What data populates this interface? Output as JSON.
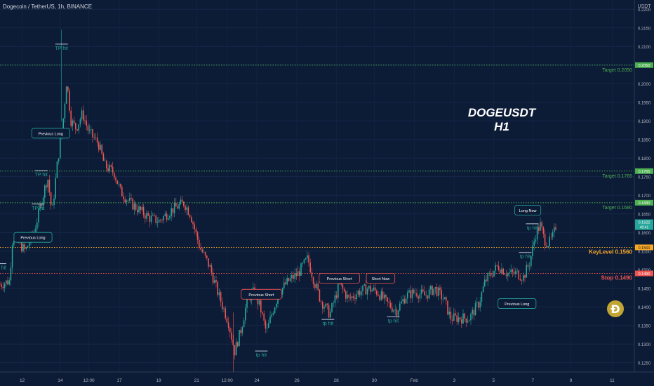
{
  "header": {
    "symbol_title": "Dogecoin / TetherUS, 1h, BINANCE",
    "currency": "USDT"
  },
  "overlay_title": [
    "DOGEUSDT",
    "H1"
  ],
  "colors": {
    "background": "#0c1b36",
    "bull": "#26a69a",
    "bear": "#ef5350",
    "target_line": "#4caf50",
    "key_line": "#f9a825",
    "stop_line": "#ef5350",
    "axis_text": "#b2b5be"
  },
  "chart_data": {
    "type": "candlestick",
    "interval": "1h",
    "ylim": [
      0.1225,
      0.2225
    ],
    "yticks": [
      0.125,
      0.13,
      0.135,
      0.14,
      0.145,
      0.15,
      0.155,
      0.16,
      0.165,
      0.17,
      0.175,
      0.18,
      0.185,
      0.19,
      0.195,
      0.2,
      0.205,
      0.21,
      0.215,
      0.22
    ],
    "x_tick_labels": [
      "12",
      "14",
      "12:00",
      "17",
      "19",
      "21",
      "12:00",
      "24",
      "26",
      "28",
      "30",
      "Feb",
      "3",
      "5",
      "7",
      "9",
      "11"
    ],
    "x_tick_positions": [
      0.035,
      0.095,
      0.14,
      0.188,
      0.25,
      0.31,
      0.358,
      0.405,
      0.468,
      0.53,
      0.59,
      0.653,
      0.716,
      0.778,
      0.84,
      0.9,
      0.965
    ],
    "horizontal_levels": [
      {
        "label": "Target 0.2050",
        "axis_badge": "0.2050",
        "value": 0.205,
        "kind": "target"
      },
      {
        "label": "Target 0.1765",
        "axis_badge": "0.1765",
        "value": 0.1765,
        "kind": "target"
      },
      {
        "label": "Target 0.1680",
        "axis_badge": "0.1680",
        "value": 0.168,
        "kind": "target"
      },
      {
        "label": "KeyLevel 0.1560",
        "axis_badge": "0.1560",
        "value": 0.156,
        "kind": "key"
      },
      {
        "label": "Stop 0.1490",
        "axis_badge": "0.1490",
        "value": 0.149,
        "kind": "stop"
      }
    ],
    "last_price": {
      "value": 0.1622,
      "text": "0.1622",
      "countdown": "40:41"
    },
    "trajectory": [
      [
        0.0,
        0.146
      ],
      [
        0.015,
        0.147
      ],
      [
        0.02,
        0.159
      ],
      [
        0.04,
        0.155
      ],
      [
        0.055,
        0.161
      ],
      [
        0.065,
        0.168
      ],
      [
        0.075,
        0.175
      ],
      [
        0.082,
        0.165
      ],
      [
        0.09,
        0.178
      ],
      [
        0.1,
        0.191
      ],
      [
        0.105,
        0.201
      ],
      [
        0.112,
        0.19
      ],
      [
        0.12,
        0.188
      ],
      [
        0.13,
        0.192
      ],
      [
        0.14,
        0.187
      ],
      [
        0.155,
        0.184
      ],
      [
        0.165,
        0.178
      ],
      [
        0.18,
        0.176
      ],
      [
        0.19,
        0.171
      ],
      [
        0.205,
        0.168
      ],
      [
        0.22,
        0.166
      ],
      [
        0.235,
        0.164
      ],
      [
        0.25,
        0.163
      ],
      [
        0.27,
        0.166
      ],
      [
        0.29,
        0.168
      ],
      [
        0.3,
        0.165
      ],
      [
        0.315,
        0.156
      ],
      [
        0.33,
        0.151
      ],
      [
        0.345,
        0.143
      ],
      [
        0.36,
        0.136
      ],
      [
        0.37,
        0.128
      ],
      [
        0.38,
        0.134
      ],
      [
        0.39,
        0.142
      ],
      [
        0.4,
        0.144
      ],
      [
        0.41,
        0.14
      ],
      [
        0.42,
        0.133
      ],
      [
        0.43,
        0.139
      ],
      [
        0.44,
        0.144
      ],
      [
        0.455,
        0.147
      ],
      [
        0.47,
        0.149
      ],
      [
        0.485,
        0.153
      ],
      [
        0.495,
        0.147
      ],
      [
        0.505,
        0.142
      ],
      [
        0.52,
        0.138
      ],
      [
        0.535,
        0.146
      ],
      [
        0.55,
        0.142
      ],
      [
        0.565,
        0.144
      ],
      [
        0.58,
        0.145
      ],
      [
        0.595,
        0.144
      ],
      [
        0.61,
        0.141
      ],
      [
        0.625,
        0.139
      ],
      [
        0.64,
        0.143
      ],
      [
        0.655,
        0.144
      ],
      [
        0.67,
        0.143
      ],
      [
        0.685,
        0.145
      ],
      [
        0.7,
        0.142
      ],
      [
        0.71,
        0.137
      ],
      [
        0.725,
        0.137
      ],
      [
        0.74,
        0.137
      ],
      [
        0.755,
        0.141
      ],
      [
        0.765,
        0.147
      ],
      [
        0.775,
        0.149
      ],
      [
        0.785,
        0.151
      ],
      [
        0.8,
        0.149
      ],
      [
        0.815,
        0.149
      ],
      [
        0.825,
        0.148
      ],
      [
        0.835,
        0.152
      ],
      [
        0.845,
        0.16
      ],
      [
        0.852,
        0.162
      ],
      [
        0.858,
        0.158
      ],
      [
        0.865,
        0.157
      ],
      [
        0.872,
        0.159
      ],
      [
        0.878,
        0.163
      ]
    ],
    "annotations": [
      {
        "text": "TP hit",
        "kind": "tp",
        "tx": 0.0,
        "tvalue": 0.1505
      },
      {
        "text": "TP hit",
        "kind": "tp",
        "tx": 0.097,
        "tvalue": 0.2095
      },
      {
        "text": "TP hit",
        "kind": "tp",
        "tx": 0.065,
        "tvalue": 0.1755
      },
      {
        "text": "TP hit",
        "kind": "tp",
        "tx": 0.06,
        "tvalue": 0.1665
      },
      {
        "text": "tp hit",
        "kind": "tp",
        "tx": 0.412,
        "tvalue": 0.127
      },
      {
        "text": "tp hit",
        "kind": "tp",
        "tx": 0.517,
        "tvalue": 0.1355
      },
      {
        "text": "tp hit",
        "kind": "tp",
        "tx": 0.62,
        "tvalue": 0.1362
      },
      {
        "text": "tp hit",
        "kind": "tp",
        "tx": 0.839,
        "tvalue": 0.1612
      },
      {
        "text": "tp hit",
        "kind": "tp",
        "tx": 0.828,
        "tvalue": 0.1535
      },
      {
        "text": "Previous Long",
        "kind": "long",
        "tx": 0.08,
        "tvalue": 0.1865
      },
      {
        "text": "Previous Long",
        "kind": "long",
        "tx": 0.052,
        "tvalue": 0.1585
      },
      {
        "text": "Previous Long",
        "kind": "long",
        "tx": 0.815,
        "tvalue": 0.1407
      },
      {
        "text": "Long Now",
        "kind": "long",
        "tx": 0.832,
        "tvalue": 0.1658
      },
      {
        "text": "Previous Short",
        "kind": "short",
        "tx": 0.412,
        "tvalue": 0.1432
      },
      {
        "text": "Previous Short",
        "kind": "short",
        "tx": 0.535,
        "tvalue": 0.1475
      },
      {
        "text": "Short Now",
        "kind": "short",
        "tx": 0.6,
        "tvalue": 0.1475
      }
    ]
  }
}
